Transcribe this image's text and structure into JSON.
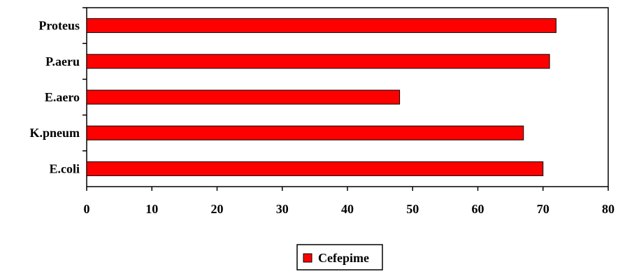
{
  "chart_data": {
    "type": "bar",
    "orientation": "horizontal",
    "categories": [
      "Proteus",
      "P.aeru",
      "E.aero",
      "K.pneum",
      "E.coli"
    ],
    "series": [
      {
        "name": "Cefepime",
        "values": [
          72,
          71,
          48,
          67,
          70
        ]
      }
    ],
    "xlim": [
      0,
      80
    ],
    "x_ticks": [
      0,
      10,
      20,
      30,
      40,
      50,
      60,
      70,
      80
    ],
    "bar_color": "#ff0000",
    "grid": false,
    "legend_position": "bottom-center"
  }
}
